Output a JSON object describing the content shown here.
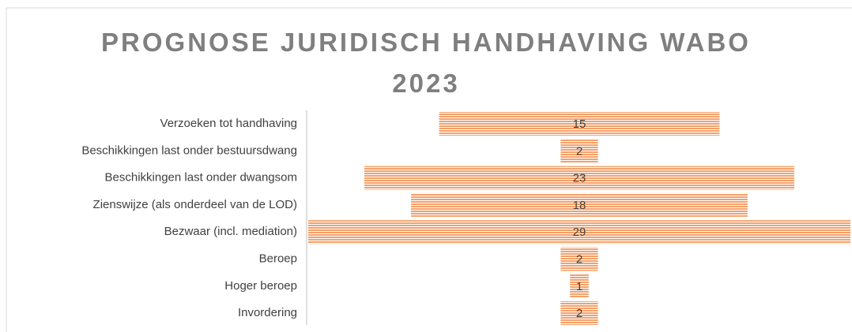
{
  "chart_data": {
    "type": "funnel",
    "title": "PROGNOSE JURIDISCH HANDHAVING WABO 2023",
    "categories": [
      "Verzoeken tot handhaving",
      "Beschikkingen last onder bestuursdwang",
      "Beschikkingen last onder dwangsom",
      "Zienswijze (als onderdeel van de LOD)",
      "Bezwaar (incl. mediation)",
      "Beroep",
      "Hoger beroep",
      "Invordering"
    ],
    "values": [
      15,
      2,
      23,
      18,
      29,
      2,
      1,
      2
    ],
    "color": "#f4a06a"
  }
}
